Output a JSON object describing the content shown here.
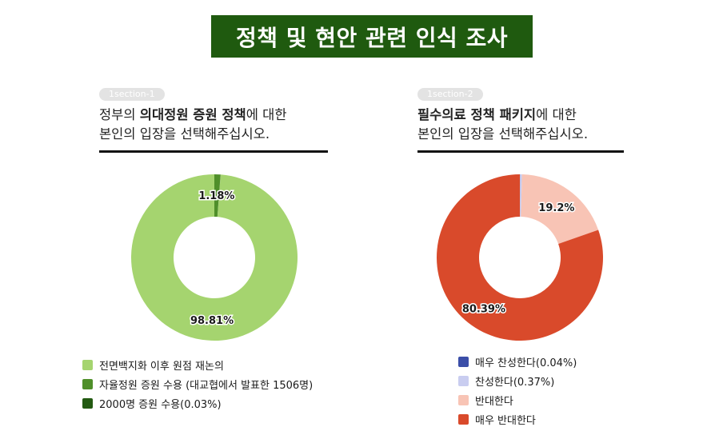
{
  "title": "정책 및 현안 관련 인식 조사",
  "panels": [
    {
      "tag": "1section-1",
      "question_line1_prefix": "정부의 ",
      "question_line1_bold": "의대정원 증원 정책",
      "question_line1_suffix": "에 대한",
      "question_line2": "본인의 입장을 선택해주십시오."
    },
    {
      "tag": "1section-2",
      "question_line1_prefix": "",
      "question_line1_bold": "필수의료 정책 패키지",
      "question_line1_suffix": "에 대한",
      "question_line2": "본인의 입장을 선택해주십시오."
    }
  ],
  "chart_data": [
    {
      "type": "pie",
      "donut": true,
      "categories": [
        "전면백지화 이후 원점 재논의",
        "자율정원 증원 수용 (대교협에서 발표한 1506명)",
        "2000명 증원 수용(0.03%)"
      ],
      "values": [
        98.81,
        1.18,
        0.03
      ],
      "data_labels": [
        "98.81%",
        "1.18%",
        ""
      ],
      "colors": [
        "#a5d46f",
        "#4f8f2a",
        "#235a12"
      ],
      "legend_position": "bottom-left"
    },
    {
      "type": "pie",
      "donut": true,
      "categories": [
        "매우 찬성한다(0.04%)",
        "찬성한다(0.37%)",
        "반대한다",
        "매우 반대한다"
      ],
      "values": [
        0.04,
        0.37,
        19.2,
        80.39
      ],
      "data_labels": [
        "",
        "",
        "19.2%",
        "80.39%"
      ],
      "colors": [
        "#3b4ea8",
        "#c9cdf0",
        "#f8c4b5",
        "#d94a2b"
      ],
      "legend_position": "bottom-left"
    }
  ]
}
